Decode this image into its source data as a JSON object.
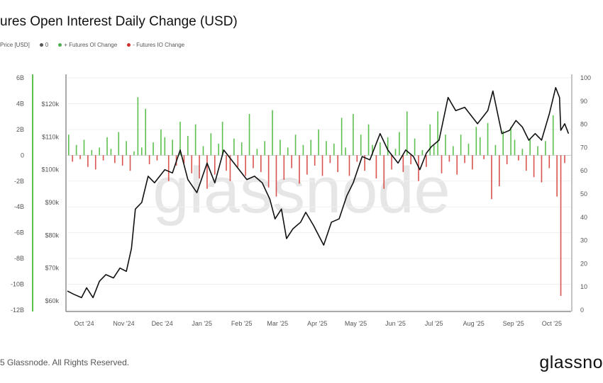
{
  "header": {
    "title": "ures Open Interest Daily Change (USD)"
  },
  "legend": [
    {
      "label": "Price [USD]",
      "color": ""
    },
    {
      "label": "0",
      "color": "#555555"
    },
    {
      "label": "+ Futures OI Change",
      "color": "#4caf50"
    },
    {
      "label": "- Futures IO Change",
      "color": "#d32f2f"
    }
  ],
  "footer": {
    "copyright": "5 Glassnode. All Rights Reserved.",
    "brand": "glassno"
  },
  "watermark": "glassnode",
  "colors": {
    "positive": "#5cc04f",
    "negative": "#d9534f",
    "price": "#111111",
    "axis_left": "#5cc04f"
  },
  "chart_data": {
    "type": "bar+line",
    "title": "Futures Open Interest Daily Change (USD)",
    "x_unit": "days since 2024-09-20",
    "x_range": [
      0,
      393
    ],
    "x_ticks": [
      {
        "label": "Oct '24",
        "day": 13
      },
      {
        "label": "Nov '24",
        "day": 44
      },
      {
        "label": "Dec '24",
        "day": 74
      },
      {
        "label": "Jan '25",
        "day": 105
      },
      {
        "label": "Feb '25",
        "day": 136
      },
      {
        "label": "Mar '25",
        "day": 164
      },
      {
        "label": "Apr '25",
        "day": 195
      },
      {
        "label": "May '25",
        "day": 225
      },
      {
        "label": "Jun '25",
        "day": 256
      },
      {
        "label": "Jul '25",
        "day": 286
      },
      {
        "label": "Aug '25",
        "day": 317
      },
      {
        "label": "Sep '25",
        "day": 348
      },
      {
        "label": "Oct '25",
        "day": 378
      }
    ],
    "oi_axis": {
      "ylim": [
        -12,
        6
      ],
      "unit": "B",
      "ticks": [
        "6B",
        "4B",
        "2B",
        "0",
        "-2B",
        "-4B",
        "-6B",
        "-8B",
        "-10B",
        "-12B"
      ],
      "tick_values": [
        6,
        4,
        2,
        0,
        -2,
        -4,
        -6,
        -8,
        -10,
        -12
      ]
    },
    "price_axis": {
      "ylim": [
        58,
        127
      ],
      "unit": "k USD",
      "ticks": [
        "$120k",
        "$110k",
        "$100k",
        "$90k",
        "$80k",
        "$70k",
        "$60k"
      ],
      "tick_values": [
        120,
        110,
        100,
        90,
        80,
        70,
        60
      ]
    },
    "right_axis": {
      "ylim": [
        0,
        100
      ],
      "ticks": [
        "100",
        "90",
        "80",
        "70",
        "60",
        "50",
        "40",
        "30",
        "20",
        "10",
        "0"
      ],
      "tick_values": [
        100,
        90,
        80,
        70,
        60,
        50,
        40,
        30,
        20,
        10,
        0
      ]
    },
    "oi_change": {
      "name": "Futures OI Change (B USD)",
      "start_day": 1,
      "step_days": 3,
      "values": [
        1.6,
        -0.5,
        0.8,
        -0.3,
        1.2,
        -0.9,
        0.4,
        -1.1,
        0.6,
        -0.4,
        1.4,
        0.5,
        -0.6,
        1.8,
        -0.8,
        1.1,
        -1.2,
        0.3,
        4.5,
        0.6,
        3.6,
        -0.7,
        1.0,
        -0.4,
        2.0,
        1.4,
        -2.0,
        1.2,
        -0.8,
        2.6,
        -0.6,
        1.5,
        -1.4,
        2.4,
        -1.8,
        0.7,
        -2.6,
        1.7,
        -1.5,
        0.9,
        2.6,
        -1.2,
        -2.0,
        1.3,
        -0.9,
        1.0,
        -1.6,
        3.2,
        -1.0,
        0.5,
        -1.3,
        1.1,
        -2.5,
        3.5,
        -3.2,
        1.2,
        -1.9,
        0.6,
        -1.0,
        1.6,
        -2.2,
        0.8,
        -1.5,
        1.2,
        -0.8,
        2.0,
        -1.6,
        1.1,
        -0.6,
        0.9,
        -1.3,
        2.9,
        0.6,
        -1.6,
        3.2,
        -0.5,
        1.6,
        -1.2,
        2.4,
        0.8,
        -1.8,
        1.0,
        -2.6,
        1.4,
        -1.1,
        0.5,
        1.8,
        -1.3,
        3.4,
        -0.7,
        1.3,
        -2.0,
        0.4,
        -0.9,
        2.4,
        0.8,
        3.4,
        -1.4,
        1.6,
        -0.5,
        0.7,
        -1.5,
        1.6,
        -0.6,
        0.9,
        -1.1,
        2.2,
        1.4,
        -0.3,
        2.5,
        -3.4,
        0.8,
        -2.4,
        1.9,
        -0.7,
        2.2,
        1.2,
        -0.4,
        0.5,
        -1.2,
        1.3,
        -1.7,
        0.7,
        -2.1,
        1.1,
        -1.0,
        3.1,
        -3.2,
        -10.9,
        -0.6
      ]
    },
    "price": {
      "name": "Price [USD] (k)",
      "points": [
        [
          0,
          63
        ],
        [
          5,
          62
        ],
        [
          11,
          61
        ],
        [
          15,
          64
        ],
        [
          20,
          61
        ],
        [
          25,
          66
        ],
        [
          30,
          68
        ],
        [
          36,
          67
        ],
        [
          41,
          70
        ],
        [
          46,
          69
        ],
        [
          50,
          76
        ],
        [
          53,
          88
        ],
        [
          58,
          90
        ],
        [
          63,
          98
        ],
        [
          68,
          96
        ],
        [
          76,
          100
        ],
        [
          82,
          99
        ],
        [
          88,
          106
        ],
        [
          94,
          97
        ],
        [
          101,
          93
        ],
        [
          109,
          102
        ],
        [
          115,
          96
        ],
        [
          122,
          106
        ],
        [
          128,
          103
        ],
        [
          134,
          100
        ],
        [
          140,
          97
        ],
        [
          146,
          98
        ],
        [
          152,
          96
        ],
        [
          158,
          91
        ],
        [
          162,
          85
        ],
        [
          167,
          88
        ],
        [
          171,
          79
        ],
        [
          176,
          82
        ],
        [
          182,
          84
        ],
        [
          186,
          87
        ],
        [
          192,
          83
        ],
        [
          200,
          77
        ],
        [
          206,
          84
        ],
        [
          212,
          85
        ],
        [
          218,
          92
        ],
        [
          223,
          96
        ],
        [
          230,
          104
        ],
        [
          236,
          103
        ],
        [
          244,
          111
        ],
        [
          250,
          106
        ],
        [
          258,
          102
        ],
        [
          264,
          106
        ],
        [
          270,
          104
        ],
        [
          275,
          100
        ],
        [
          280,
          105
        ],
        [
          284,
          107
        ],
        [
          290,
          109
        ],
        [
          297,
          122
        ],
        [
          303,
          118
        ],
        [
          310,
          119
        ],
        [
          314,
          117
        ],
        [
          320,
          114
        ],
        [
          328,
          118
        ],
        [
          332,
          124
        ],
        [
          339,
          111
        ],
        [
          345,
          112
        ],
        [
          350,
          115
        ],
        [
          355,
          113
        ],
        [
          360,
          109
        ],
        [
          365,
          111
        ],
        [
          370,
          109
        ],
        [
          376,
          117
        ],
        [
          381,
          125
        ],
        [
          384,
          122
        ],
        [
          385,
          112
        ],
        [
          388,
          114
        ],
        [
          391,
          111
        ]
      ]
    }
  }
}
